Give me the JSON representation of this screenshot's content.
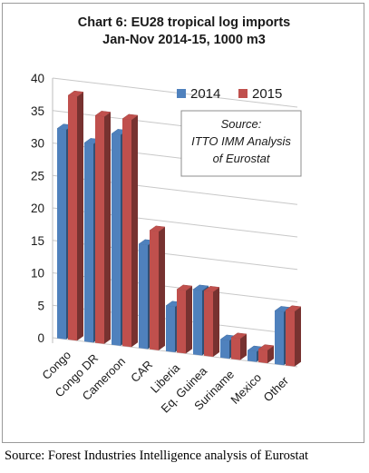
{
  "chart_data": {
    "type": "bar",
    "title_line1": "Chart 6: EU28 tropical log imports",
    "title_line2": "Jan-Nov 2014-15, 1000 m3",
    "categories": [
      "Congo",
      "Congo DR",
      "Cameroon",
      "CAR",
      "Liberia",
      "Eq. Guinea",
      "Suriname",
      "Mexico",
      "Other"
    ],
    "series": [
      {
        "name": "2014",
        "color": "#4f81bd",
        "values": [
          32.3,
          30.6,
          32.5,
          16.0,
          7.0,
          10.0,
          2.8,
          1.6,
          8.2
        ]
      },
      {
        "name": "2015",
        "color": "#c0504d",
        "values": [
          37.6,
          35.0,
          35.0,
          18.3,
          9.7,
          10.0,
          3.3,
          2.0,
          8.5
        ]
      }
    ],
    "ylim": [
      0,
      40
    ],
    "yticks": [
      "0",
      "5",
      "10",
      "15",
      "20",
      "25",
      "30",
      "35",
      "40"
    ],
    "grid": true,
    "legend_position": "top-right",
    "annotation": [
      "Source:",
      "ITTO IMM Analysis",
      "of Eurostat"
    ]
  },
  "footer": {
    "caption": "Source: Forest Industries Intelligence analysis of Eurostat"
  }
}
